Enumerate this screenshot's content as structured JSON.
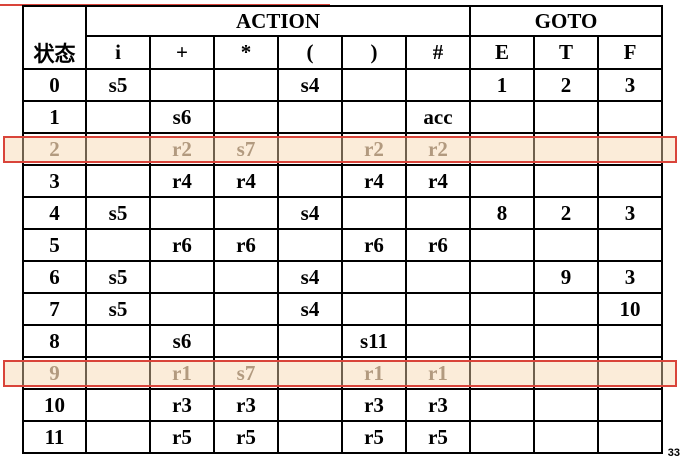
{
  "table": {
    "state_header": "状态",
    "action_header": "ACTION",
    "goto_header": "GOTO",
    "action_symbols": [
      "i",
      "+",
      "*",
      "(",
      ")",
      "#"
    ],
    "goto_symbols": [
      "E",
      "T",
      "F"
    ],
    "rows": [
      {
        "state": "0",
        "cells": [
          "s5",
          "",
          "",
          "s4",
          "",
          "",
          "1",
          "2",
          "3"
        ]
      },
      {
        "state": "1",
        "cells": [
          "",
          "s6",
          "",
          "",
          "",
          "acc",
          "",
          "",
          ""
        ]
      },
      {
        "state": "2",
        "cells": [
          "",
          "r2",
          "s7",
          "",
          "r2",
          "r2",
          "",
          "",
          ""
        ],
        "highlighted": true
      },
      {
        "state": "3",
        "cells": [
          "",
          "r4",
          "r4",
          "",
          "r4",
          "r4",
          "",
          "",
          ""
        ]
      },
      {
        "state": "4",
        "cells": [
          "s5",
          "",
          "",
          "s4",
          "",
          "",
          "8",
          "2",
          "3"
        ]
      },
      {
        "state": "5",
        "cells": [
          "",
          "r6",
          "r6",
          "",
          "r6",
          "r6",
          "",
          "",
          ""
        ]
      },
      {
        "state": "6",
        "cells": [
          "s5",
          "",
          "",
          "s4",
          "",
          "",
          "",
          "9",
          "3"
        ]
      },
      {
        "state": "7",
        "cells": [
          "s5",
          "",
          "",
          "s4",
          "",
          "",
          "",
          "",
          "10"
        ]
      },
      {
        "state": "8",
        "cells": [
          "",
          "s6",
          "",
          "",
          "s11",
          "",
          "",
          "",
          ""
        ]
      },
      {
        "state": "9",
        "cells": [
          "",
          "r1",
          "s7",
          "",
          "r1",
          "r1",
          "",
          "",
          ""
        ],
        "highlighted": true
      },
      {
        "state": "10",
        "cells": [
          "",
          "r3",
          "r3",
          "",
          "r3",
          "r3",
          "",
          "",
          ""
        ]
      },
      {
        "state": "11",
        "cells": [
          "",
          "r5",
          "r5",
          "",
          "r5",
          "r5",
          "",
          "",
          ""
        ]
      }
    ]
  },
  "page_number": "33",
  "colors": {
    "highlight_fill": "#f7d5aa",
    "highlight_border": "#d9443a",
    "highlight_text": "#7a6a5c"
  }
}
